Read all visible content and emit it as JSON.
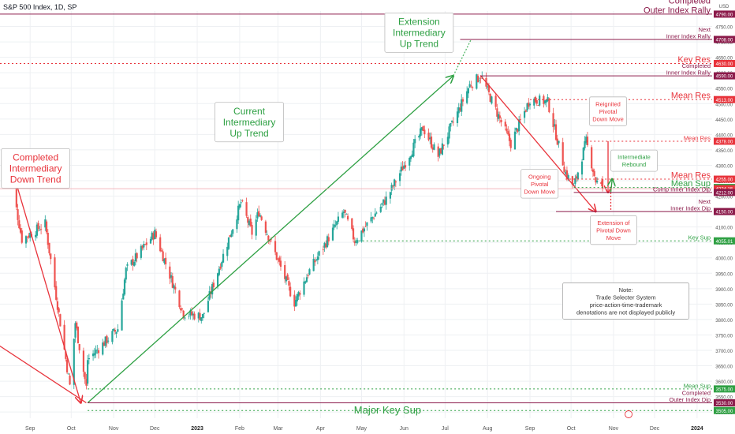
{
  "header": {
    "symbol_line": "S&P 500 Index, 1D, SP"
  },
  "currency": "USD",
  "colors": {
    "up": "#26a69a",
    "down": "#ef5350",
    "green": "#2ea043",
    "red": "#e8333b",
    "maroon": "#8b1a4a",
    "green_dotted": "#55b96a",
    "axis_text": "#555555",
    "grid": "#eef0f3"
  },
  "chart_data": {
    "type": "candlestick",
    "title": "S&P 500 Index, 1D, SP",
    "ylim": [
      3480,
      4800
    ],
    "y_ticks": [
      3500,
      3550,
      3600,
      3650,
      3700,
      3750,
      3800,
      3850,
      3900,
      3950,
      4000,
      4050,
      4100,
      4150,
      4200,
      4250,
      4300,
      4350,
      4400,
      4450,
      4500,
      4550,
      4600,
      4650,
      4700,
      4750
    ],
    "x_ticks": [
      "Sep",
      "Oct",
      "Nov",
      "Dec",
      "2023",
      "Feb",
      "Mar",
      "Apr",
      "May",
      "Jun",
      "Jul",
      "Aug",
      "Sep",
      "Oct",
      "Nov",
      "Dec",
      "2024"
    ],
    "price_path": [
      {
        "date": "2022-08-16",
        "close": 4305
      },
      {
        "date": "2022-08-26",
        "close": 4060
      },
      {
        "date": "2022-09-12",
        "close": 4110
      },
      {
        "date": "2022-09-30",
        "close": 3585
      },
      {
        "date": "2022-10-04",
        "close": 3790
      },
      {
        "date": "2022-10-12",
        "close": 3580
      },
      {
        "date": "2022-10-13",
        "close": 3670
      },
      {
        "date": "2022-11-04",
        "close": 3770
      },
      {
        "date": "2022-11-10",
        "close": 3960
      },
      {
        "date": "2022-12-01",
        "close": 4080
      },
      {
        "date": "2022-12-22",
        "close": 3820
      },
      {
        "date": "2023-01-05",
        "close": 3810
      },
      {
        "date": "2023-02-02",
        "close": 4180
      },
      {
        "date": "2023-02-10",
        "close": 4080
      },
      {
        "date": "2023-02-15",
        "close": 4150
      },
      {
        "date": "2023-03-13",
        "close": 3855
      },
      {
        "date": "2023-03-23",
        "close": 3950
      },
      {
        "date": "2023-04-18",
        "close": 4150
      },
      {
        "date": "2023-04-26",
        "close": 4055
      },
      {
        "date": "2023-05-19",
        "close": 4190
      },
      {
        "date": "2023-06-15",
        "close": 4420
      },
      {
        "date": "2023-06-26",
        "close": 4330
      },
      {
        "date": "2023-07-19",
        "close": 4560
      },
      {
        "date": "2023-07-27",
        "close": 4590
      },
      {
        "date": "2023-08-18",
        "close": 4370
      },
      {
        "date": "2023-09-01",
        "close": 4515
      },
      {
        "date": "2023-09-14",
        "close": 4505
      },
      {
        "date": "2023-09-27",
        "close": 4275
      },
      {
        "date": "2023-10-03",
        "close": 4230
      },
      {
        "date": "2023-10-12",
        "close": 4378
      },
      {
        "date": "2023-10-19",
        "close": 4250
      },
      {
        "date": "2023-10-24",
        "close": 4224
      }
    ],
    "levels": [
      {
        "id": "completed-outer-rally",
        "value": 4790,
        "style": "solid",
        "color": "maroon",
        "tag": "4790.00",
        "label": "Completed\nOuter Index Rally",
        "label_size": "large",
        "label_color": "maroon"
      },
      {
        "id": "next-inner-rally",
        "value": 4708,
        "style": "solid",
        "color": "maroon",
        "tag": "4708.00",
        "label": "Next\nInner Index Rally",
        "label_size": "small",
        "label_color": "maroon",
        "from": "2023-07-12"
      },
      {
        "id": "key-res",
        "value": 4630,
        "style": "dotted",
        "color": "red",
        "tag": "4630.00",
        "label": "Key Res",
        "label_size": "large",
        "label_color": "red",
        "from": "start"
      },
      {
        "id": "completed-inner-rally",
        "value": 4590,
        "style": "solid",
        "color": "maroon",
        "tag": "4590.00",
        "label": "Completed\nInner Index Rally",
        "label_size": "small",
        "label_color": "maroon",
        "from": "2023-07-27"
      },
      {
        "id": "mean-res-upper",
        "value": 4513,
        "style": "dotted",
        "color": "red",
        "tag": "4513.00",
        "label": "Mean Res",
        "label_size": "large",
        "label_color": "red",
        "from": "2023-09-01"
      },
      {
        "id": "mean-res-small",
        "value": 4378,
        "style": "dotted",
        "color": "red",
        "tag": "4378.00",
        "label": "Mean Res",
        "label_size": "small",
        "label_color": "red",
        "from": "2023-10-12"
      },
      {
        "id": "mean-res-lower",
        "value": 4255,
        "style": "dotted",
        "color": "red",
        "tag": "4255.00",
        "label": "Mean Res",
        "label_size": "large",
        "label_color": "red",
        "from": "2023-09-27"
      },
      {
        "id": "mean-sup",
        "value": 4228,
        "style": "dotted",
        "color": "green",
        "tag": "4228.00",
        "label": "Mean Sup",
        "label_size": "large",
        "label_color": "green",
        "from": "2023-10-03"
      },
      {
        "id": "current-price",
        "value": 4224.15,
        "style": "solid",
        "color": "price",
        "tag": "4224.15",
        "label": "",
        "from": "start"
      },
      {
        "id": "comp-inner-dip",
        "value": 4212,
        "style": "solid",
        "color": "maroon",
        "tag": "4212.00",
        "label": "Comp Inner Index Dip",
        "label_size": "small",
        "label_color": "maroon",
        "from": "2023-10-03"
      },
      {
        "id": "next-inner-dip",
        "value": 4150,
        "style": "solid",
        "color": "maroon",
        "tag": "4150.00",
        "label": "Next\nInner Index Dip",
        "label_size": "small",
        "label_color": "maroon",
        "from": "2023-09-20"
      },
      {
        "id": "key-sup",
        "value": 4055.01,
        "style": "dotted",
        "color": "green",
        "tag": "4055.01",
        "label": "Key Sup",
        "label_size": "small",
        "label_color": "green",
        "from": "2023-04-26"
      },
      {
        "id": "mean-sup-low",
        "value": 3575,
        "style": "dotted",
        "color": "green",
        "tag": "3575.00",
        "label": "Mean Sup",
        "label_size": "small",
        "label_color": "green",
        "from": "2022-10-13"
      },
      {
        "id": "completed-outer-dip",
        "value": 3530,
        "style": "solid",
        "color": "maroon",
        "tag": "3530.00",
        "label": "Completed\nOuter Index Dip",
        "label_size": "small",
        "label_color": "maroon",
        "from": "2022-10-13"
      },
      {
        "id": "major-key-sup",
        "value": 3505,
        "style": "dotted",
        "color": "green",
        "tag": "3505.00",
        "label": "Major Key Sup",
        "label_size": "xlarge",
        "label_color": "green",
        "from": "2022-10-13",
        "label_at": "2023-05-20"
      }
    ],
    "trend_lines": [
      {
        "id": "intermediary-down",
        "color": "red",
        "from": [
          "2022-08-18",
          4300
        ],
        "to": [
          "2022-10-08",
          3530
        ],
        "arrow": true
      },
      {
        "id": "left-down",
        "color": "red",
        "from": [
          "2022-08-01",
          3740
        ],
        "to": [
          "2022-10-12",
          3530
        ],
        "arrow": false
      },
      {
        "id": "intermediary-up",
        "color": "green",
        "from": [
          "2022-10-13",
          3530
        ],
        "to": [
          "2023-07-07",
          4590
        ],
        "arrow": true
      },
      {
        "id": "intermediary-up-ext",
        "color": "green_dotted",
        "from": [
          "2023-07-07",
          4590
        ],
        "to": [
          "2023-07-20",
          4708
        ],
        "arrow": false
      },
      {
        "id": "pivotal-down",
        "color": "red",
        "from": [
          "2023-07-27",
          4590
        ],
        "to": [
          "2023-10-19",
          4150
        ],
        "arrow": true
      },
      {
        "id": "reignited-pivotal",
        "color": "red",
        "from": [
          "2023-10-28",
          4378
        ],
        "to": [
          "2023-10-28",
          4212
        ],
        "arrow": true
      },
      {
        "id": "extension-pivotal",
        "color": "red",
        "from": [
          "2023-10-30",
          4212
        ],
        "to": [
          "2023-10-30",
          4150
        ],
        "arrow": false,
        "dashed": true
      },
      {
        "id": "intermediate-rebound",
        "color": "green",
        "from": [
          "2023-10-30",
          4212
        ],
        "to": [
          "2023-10-31",
          4255
        ],
        "arrow": true
      }
    ],
    "annotations": [
      {
        "id": "completed-intermediary-down",
        "text": "Completed\nIntermediary\nDown Trend",
        "color": "red",
        "size": "large",
        "anchor": [
          "2022-09-05",
          4290
        ]
      },
      {
        "id": "current-intermediary-up",
        "text": "Current\nIntermediary\nUp Trend",
        "color": "green",
        "size": "large",
        "anchor": [
          "2023-02-08",
          4440
        ]
      },
      {
        "id": "extension-intermediary-up",
        "text": "Extension\nIntermediary\nUp Trend",
        "color": "green",
        "size": "large",
        "anchor": [
          "2023-06-12",
          4730
        ]
      },
      {
        "id": "ongoing-pivotal-down",
        "text": "Ongoing\nPivotal\nDown Move",
        "color": "red",
        "size": "small",
        "anchor": [
          "2023-09-08",
          4240
        ]
      },
      {
        "id": "reignited-pivotal-down",
        "text": "Reignited\nPivotal\nDown Move",
        "color": "red",
        "size": "small",
        "anchor": [
          "2023-10-28",
          4475
        ]
      },
      {
        "id": "intermediate-rebound-label",
        "text": "Intermediate\nRebound",
        "color": "green",
        "size": "small",
        "anchor": [
          "2023-11-16",
          4315
        ]
      },
      {
        "id": "extension-pivotal-down",
        "text": "Extension of\nPivotal Down\nMove",
        "color": "red",
        "size": "small",
        "anchor": [
          "2023-11-01",
          4090
        ]
      },
      {
        "id": "note",
        "text": "Note:\nTrade Selecter System\nprice-action-time-trademark\ndenotations are not displayed publicly",
        "color": "dark",
        "size": "note",
        "anchor": [
          "2023-11-10",
          3860
        ]
      }
    ]
  }
}
